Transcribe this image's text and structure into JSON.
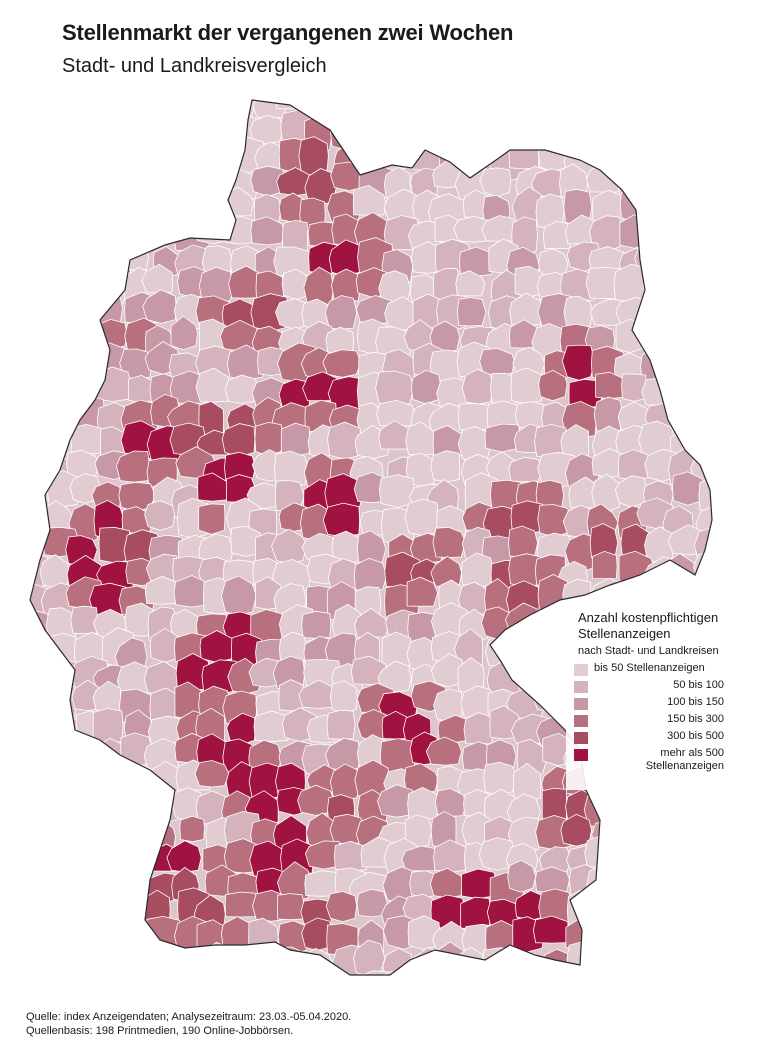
{
  "title": "Stellenmarkt der vergangenen zwei Wochen",
  "subtitle": "Stadt- und Landkreisvergleich",
  "legend": {
    "title_line1": "Anzahl kostenpflichtigen",
    "title_line2": "Stellenanzeigen",
    "subtitle": "nach Stadt- und Landkreisen",
    "items": [
      {
        "label": "bis 50 Stellenanzeigen",
        "color": "#e0ccd1"
      },
      {
        "label": "50 bis 100",
        "color": "#d4b3bc"
      },
      {
        "label": "100 bis 150",
        "color": "#c798a5"
      },
      {
        "label": "150 bis 300",
        "color": "#b8707f"
      },
      {
        "label": "300 bis 500",
        "color": "#a84d61"
      },
      {
        "label": "mehr als 500 Stellenanzeigen",
        "color": "#a0123f"
      }
    ]
  },
  "source_line1": "Quelle: index Anzeigendaten; Analysezeitraum: 23.03.-05.04.2020.",
  "source_line2": "Quellenbasis: 198 Printmedien, 190 Online-Jobbörsen.",
  "map": {
    "country": "Deutschland",
    "category_colors": [
      "#e0ccd1",
      "#d4b3bc",
      "#c798a5",
      "#b8707f",
      "#a84d61",
      "#a0123f"
    ],
    "border_color": "#ffffff"
  }
}
